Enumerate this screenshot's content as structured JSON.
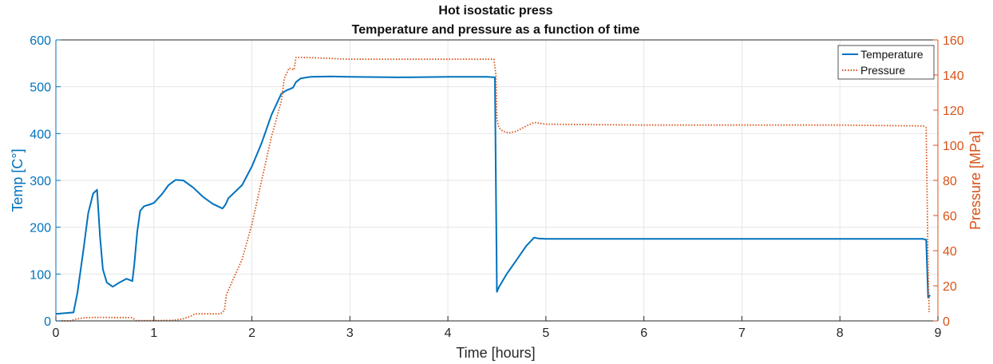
{
  "chart_data": {
    "type": "line",
    "title": "Hot isostatic press",
    "subtitle": "Temperature and pressure as a function of time",
    "xlabel": "Time [hours]",
    "ylabel_left": "Temp [C°]",
    "ylabel_right": "Pressure [MPa]",
    "xlim": [
      0,
      9
    ],
    "ylim_left": [
      0,
      600
    ],
    "ylim_right": [
      0,
      160
    ],
    "xticks": [
      0,
      1,
      2,
      3,
      4,
      5,
      6,
      7,
      8,
      9
    ],
    "yticks_left": [
      0,
      100,
      200,
      300,
      400,
      500,
      600
    ],
    "yticks_right": [
      0,
      20,
      40,
      60,
      80,
      100,
      120,
      140,
      160
    ],
    "grid": true,
    "legend_position": "top-right",
    "colors": {
      "temperature": "#0072BD",
      "pressure": "#D95319",
      "axis_left": "#0072BD",
      "axis_right": "#D95319",
      "text": "#262626",
      "grid": "#e6e6e6"
    },
    "series": [
      {
        "name": "Temperature",
        "axis": "left",
        "style": "solid",
        "x": [
          0,
          0.18,
          0.22,
          0.28,
          0.33,
          0.38,
          0.42,
          0.45,
          0.48,
          0.52,
          0.58,
          0.65,
          0.72,
          0.78,
          0.8,
          0.83,
          0.86,
          0.9,
          0.95,
          1.0,
          1.08,
          1.15,
          1.22,
          1.3,
          1.4,
          1.5,
          1.6,
          1.7,
          1.73,
          1.76,
          1.8,
          1.9,
          2.0,
          2.1,
          2.2,
          2.3,
          2.35,
          2.42,
          2.45,
          2.5,
          2.6,
          2.8,
          3.0,
          3.5,
          4.0,
          4.4,
          4.48,
          4.5,
          4.52,
          4.6,
          4.7,
          4.8,
          4.88,
          4.92,
          5.0,
          6.0,
          7.0,
          8.0,
          8.85,
          8.88,
          8.9,
          8.92
        ],
        "y": [
          15,
          18,
          60,
          150,
          230,
          272,
          280,
          180,
          110,
          82,
          73,
          82,
          90,
          85,
          120,
          190,
          235,
          245,
          248,
          252,
          270,
          290,
          301,
          300,
          285,
          265,
          250,
          240,
          248,
          262,
          270,
          290,
          330,
          380,
          440,
          485,
          492,
          498,
          510,
          518,
          521,
          522,
          521,
          520,
          521,
          521,
          520,
          62,
          72,
          100,
          130,
          160,
          178,
          176,
          175,
          175,
          175,
          175,
          175,
          173,
          50,
          55
        ]
      },
      {
        "name": "Pressure",
        "axis": "right",
        "style": "dotted",
        "x": [
          0,
          0.15,
          0.2,
          0.3,
          0.4,
          0.5,
          0.6,
          0.7,
          0.78,
          0.82,
          1.0,
          1.2,
          1.3,
          1.38,
          1.42,
          1.55,
          1.68,
          1.72,
          1.74,
          1.78,
          1.9,
          2.0,
          2.1,
          2.2,
          2.3,
          2.33,
          2.38,
          2.43,
          2.45,
          2.55,
          3.0,
          3.5,
          4.0,
          4.47,
          4.49,
          4.5,
          4.52,
          4.56,
          4.62,
          4.7,
          4.8,
          4.88,
          5.0,
          6.0,
          7.0,
          8.0,
          8.85,
          8.88,
          8.9,
          8.91
        ],
        "y": [
          0,
          0,
          1,
          1.8,
          2,
          2,
          1.9,
          1.9,
          1.8,
          0.2,
          0.2,
          0.3,
          1.2,
          2.8,
          4,
          4,
          4,
          6,
          15,
          20,
          35,
          55,
          80,
          105,
          125,
          138,
          144,
          143,
          150,
          150,
          149,
          149,
          149,
          149,
          140,
          115,
          110,
          108,
          107,
          108,
          111,
          113,
          112,
          111.5,
          111.5,
          111.5,
          111,
          110,
          30,
          5
        ]
      }
    ]
  }
}
